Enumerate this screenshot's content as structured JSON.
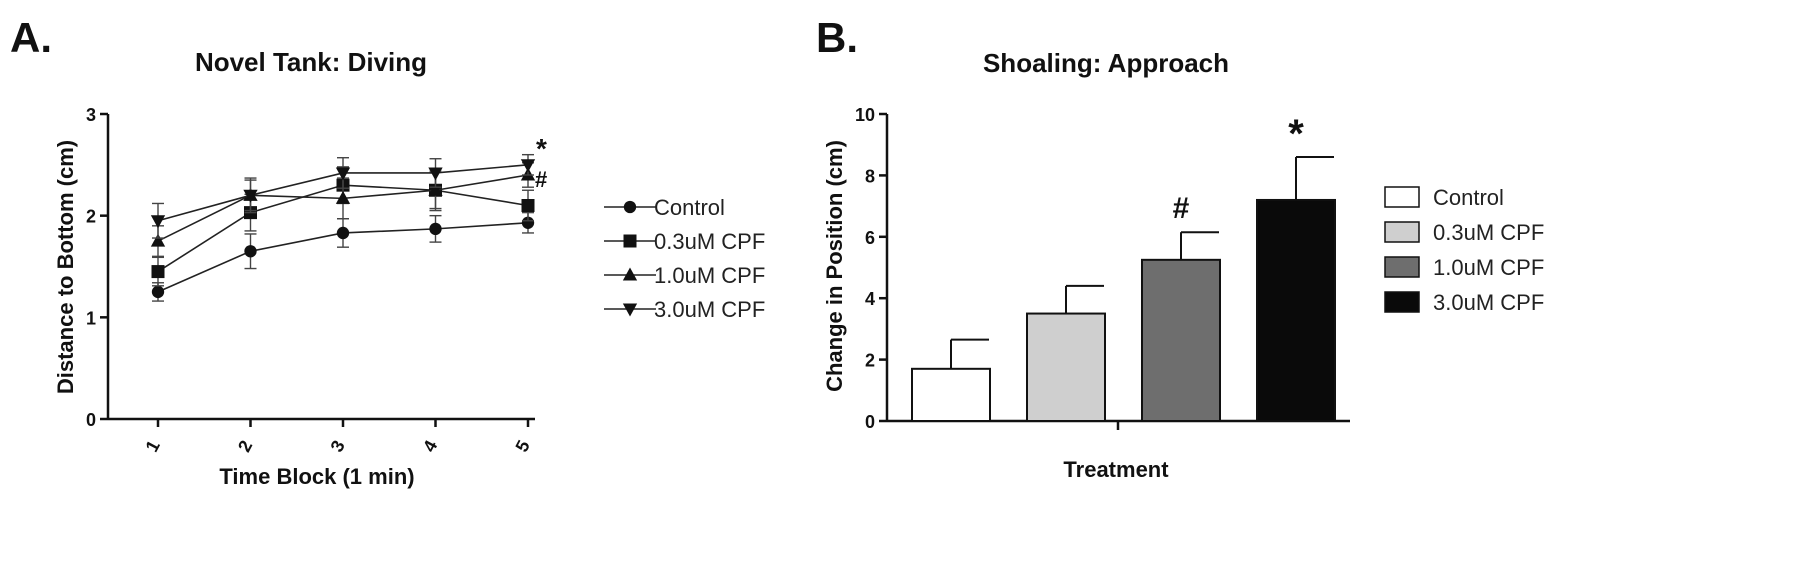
{
  "chart_data": [
    {
      "panel": "A.",
      "type": "line",
      "title": "Novel Tank: Diving",
      "xlabel": "Time Block (1 min)",
      "ylabel": "Distance to Bottom (cm)",
      "categories": [
        "1",
        "2",
        "3",
        "4",
        "5"
      ],
      "ylim": [
        0,
        3
      ],
      "yticks": [
        "0",
        "1",
        "2",
        "3"
      ],
      "legend_position": "right",
      "series": [
        {
          "name": "Control",
          "marker": "circle",
          "values": [
            1.25,
            1.65,
            1.83,
            1.87,
            1.93
          ],
          "errors": [
            0.09,
            0.17,
            0.14,
            0.13,
            0.1
          ]
        },
        {
          "name": "0.3uM CPF",
          "marker": "square",
          "values": [
            1.45,
            2.03,
            2.3,
            2.25,
            2.1
          ],
          "errors": [
            0.14,
            0.18,
            0.18,
            0.2,
            0.15
          ]
        },
        {
          "name": "1.0uM CPF",
          "marker": "triangle-up",
          "values": [
            1.75,
            2.2,
            2.17,
            2.25,
            2.4
          ],
          "errors": [
            0.15,
            0.17,
            0.2,
            0.18,
            0.12
          ]
        },
        {
          "name": "3.0uM CPF",
          "marker": "triangle-down",
          "values": [
            1.95,
            2.2,
            2.42,
            2.42,
            2.5
          ],
          "errors": [
            0.17,
            0.15,
            0.15,
            0.14,
            0.1
          ]
        }
      ],
      "annotations": [
        "*",
        "#"
      ]
    },
    {
      "panel": "B.",
      "type": "bar",
      "title": "Shoaling: Approach",
      "xlabel": "Treatment",
      "ylabel": "Change in Position (cm)",
      "categories": [
        "Control",
        "0.3uM CPF",
        "1.0uM CPF",
        "3.0uM CPF"
      ],
      "values": [
        1.7,
        3.5,
        5.25,
        7.2
      ],
      "errors": [
        0.95,
        0.9,
        0.9,
        1.4
      ],
      "colors": [
        "#ffffff",
        "#cfcfcf",
        "#6e6e6e",
        "#0a0a0a"
      ],
      "bar_annotations": [
        "",
        "",
        "#",
        "*"
      ],
      "ylim": [
        0,
        10
      ],
      "yticks": [
        "0",
        "2",
        "4",
        "6",
        "8",
        "10"
      ],
      "legend_position": "right"
    }
  ]
}
